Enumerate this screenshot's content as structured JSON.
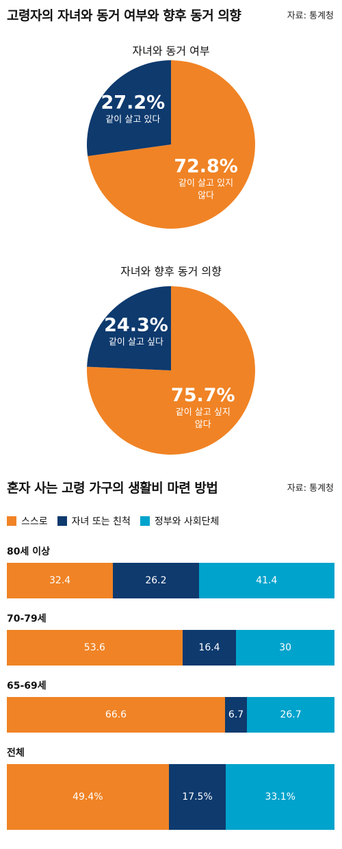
{
  "section1": {
    "title": "고령자의 자녀와 동거 여부와 향후 동거 의향",
    "source": "자료: 통계청"
  },
  "section2": {
    "title": "혼자 사는 고령 가구의 생활비 마련 방법",
    "source": "자료: 통계청"
  },
  "colors": {
    "orange": "#F08325",
    "navy": "#0E3A6E",
    "cyan": "#00A3CC"
  },
  "chart_data": [
    {
      "type": "pie",
      "title": "자녀와 동거 여부",
      "slices": [
        {
          "label": "같이 살고 있지 않다",
          "value": 72.8,
          "value_label": "72.8%",
          "color": "#F08325"
        },
        {
          "label": "같이 살고 있다",
          "value": 27.2,
          "value_label": "27.2%",
          "color": "#0E3A6E"
        }
      ]
    },
    {
      "type": "pie",
      "title": "자녀와 향후 동거 의향",
      "slices": [
        {
          "label": "같이 살고 싶지 않다",
          "value": 75.7,
          "value_label": "75.7%",
          "color": "#F08325"
        },
        {
          "label": "같이 살고 싶다",
          "value": 24.3,
          "value_label": "24.3%",
          "color": "#0E3A6E"
        }
      ]
    },
    {
      "type": "bar",
      "stacked": true,
      "orientation": "horizontal",
      "legend": [
        {
          "name": "스스로",
          "color": "#F08325"
        },
        {
          "name": "자녀 또는 친척",
          "color": "#0E3A6E"
        },
        {
          "name": "정부와 사회단체",
          "color": "#00A3CC"
        }
      ],
      "groups": [
        {
          "label": "80세 이상",
          "values": [
            32.4,
            26.2,
            41.4
          ],
          "value_labels": [
            "32.4",
            "26.2",
            "41.4"
          ]
        },
        {
          "label": "70-79세",
          "values": [
            53.6,
            16.4,
            30
          ],
          "value_labels": [
            "53.6",
            "16.4",
            "30"
          ]
        },
        {
          "label": "65-69세",
          "values": [
            66.6,
            6.7,
            26.7
          ],
          "value_labels": [
            "66.6",
            "6.7",
            "26.7"
          ]
        },
        {
          "label": "전체",
          "values": [
            49.4,
            17.5,
            33.1
          ],
          "value_labels": [
            "49.4%",
            "17.5%",
            "33.1%"
          ]
        }
      ]
    }
  ]
}
